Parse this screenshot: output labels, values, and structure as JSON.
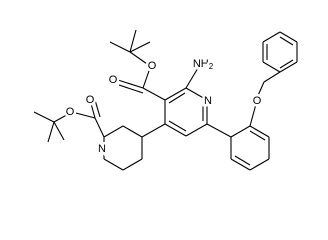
{
  "nodes": [
    {
      "label": "O"
    },
    {
      "label": "O"
    },
    {
      "label": "NH",
      "subscript": "2"
    },
    {
      "label": "N"
    },
    {
      "label": "O"
    },
    {
      "label": "O"
    },
    {
      "label": "O"
    },
    {
      "label": "N"
    }
  ]
}
